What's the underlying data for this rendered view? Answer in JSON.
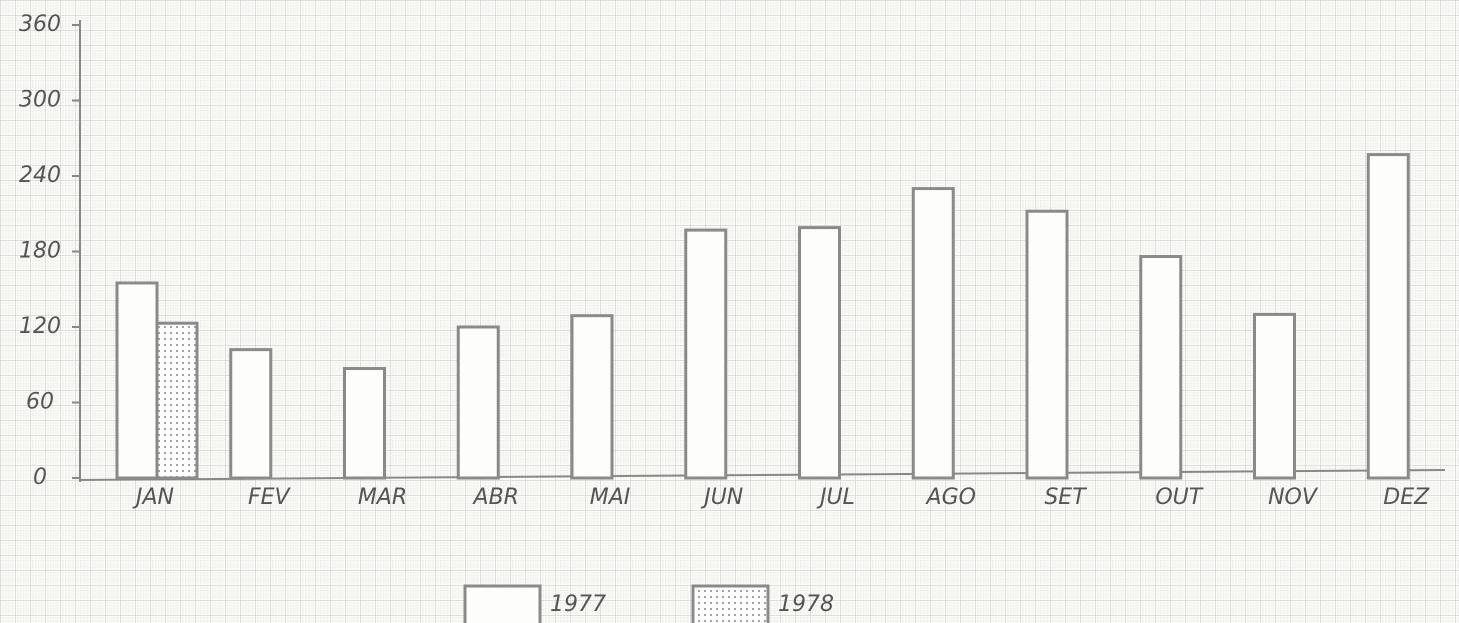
{
  "chart_data": {
    "type": "bar",
    "categories": [
      "JAN",
      "FEV",
      "MAR",
      "ABR",
      "MAI",
      "JUN",
      "JUL",
      "AGO",
      "SET",
      "OUT",
      "NOV",
      "DEZ"
    ],
    "series": [
      {
        "name": "1977",
        "color": "#8a8a8a",
        "fill": "none",
        "values": [
          155,
          102,
          87,
          120,
          129,
          197,
          199,
          230,
          212,
          176,
          130,
          257
        ]
      },
      {
        "name": "1978",
        "color": "#8a8a8a",
        "fill": "dots",
        "values": [
          123,
          null,
          null,
          null,
          null,
          null,
          null,
          null,
          null,
          null,
          null,
          null
        ]
      }
    ],
    "ylim": [
      0,
      360
    ],
    "yticks": [
      0,
      60,
      120,
      180,
      240,
      300,
      360
    ],
    "grid": true
  }
}
